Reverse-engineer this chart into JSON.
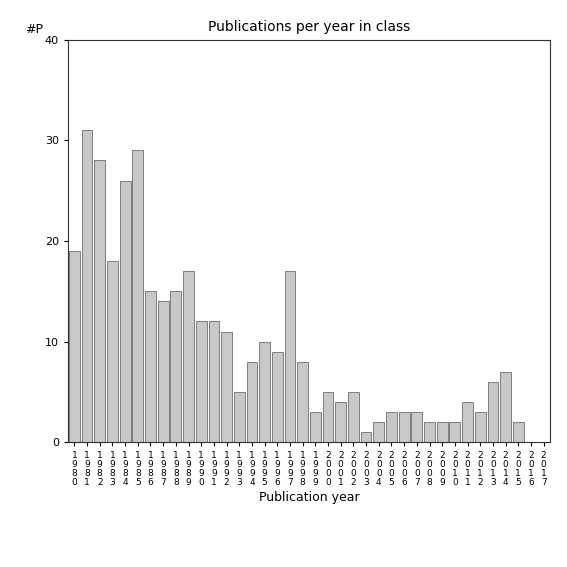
{
  "title": "Publications per year in class",
  "xlabel": "Publication year",
  "ylabel": "#P",
  "ylim": [
    0,
    40
  ],
  "yticks": [
    0,
    10,
    20,
    30,
    40
  ],
  "bar_color": "#c8c8c8",
  "bar_edgecolor": "#555555",
  "categories": [
    "1980",
    "1981",
    "1982",
    "1983",
    "1984",
    "1985",
    "1986",
    "1987",
    "1988",
    "1989",
    "1990",
    "1991",
    "1992",
    "1993",
    "1994",
    "1995",
    "1996",
    "1997",
    "1998",
    "1999",
    "2000",
    "2001",
    "2002",
    "2003",
    "2004",
    "2005",
    "2006",
    "2007",
    "2008",
    "2009",
    "2010",
    "2011",
    "2012",
    "2013",
    "2014",
    "2015",
    "2016",
    "2017"
  ],
  "values": [
    19,
    31,
    28,
    18,
    26,
    29,
    15,
    14,
    15,
    17,
    12,
    12,
    11,
    5,
    8,
    10,
    9,
    17,
    8,
    3,
    5,
    4,
    5,
    1,
    2,
    3,
    3,
    3,
    2,
    2,
    2,
    4,
    3,
    6,
    7,
    2,
    0,
    0
  ],
  "background_color": "#ffffff",
  "title_fontsize": 10,
  "label_fontsize": 9,
  "tick_fontsize": 8,
  "xtick_fontsize": 6.5
}
